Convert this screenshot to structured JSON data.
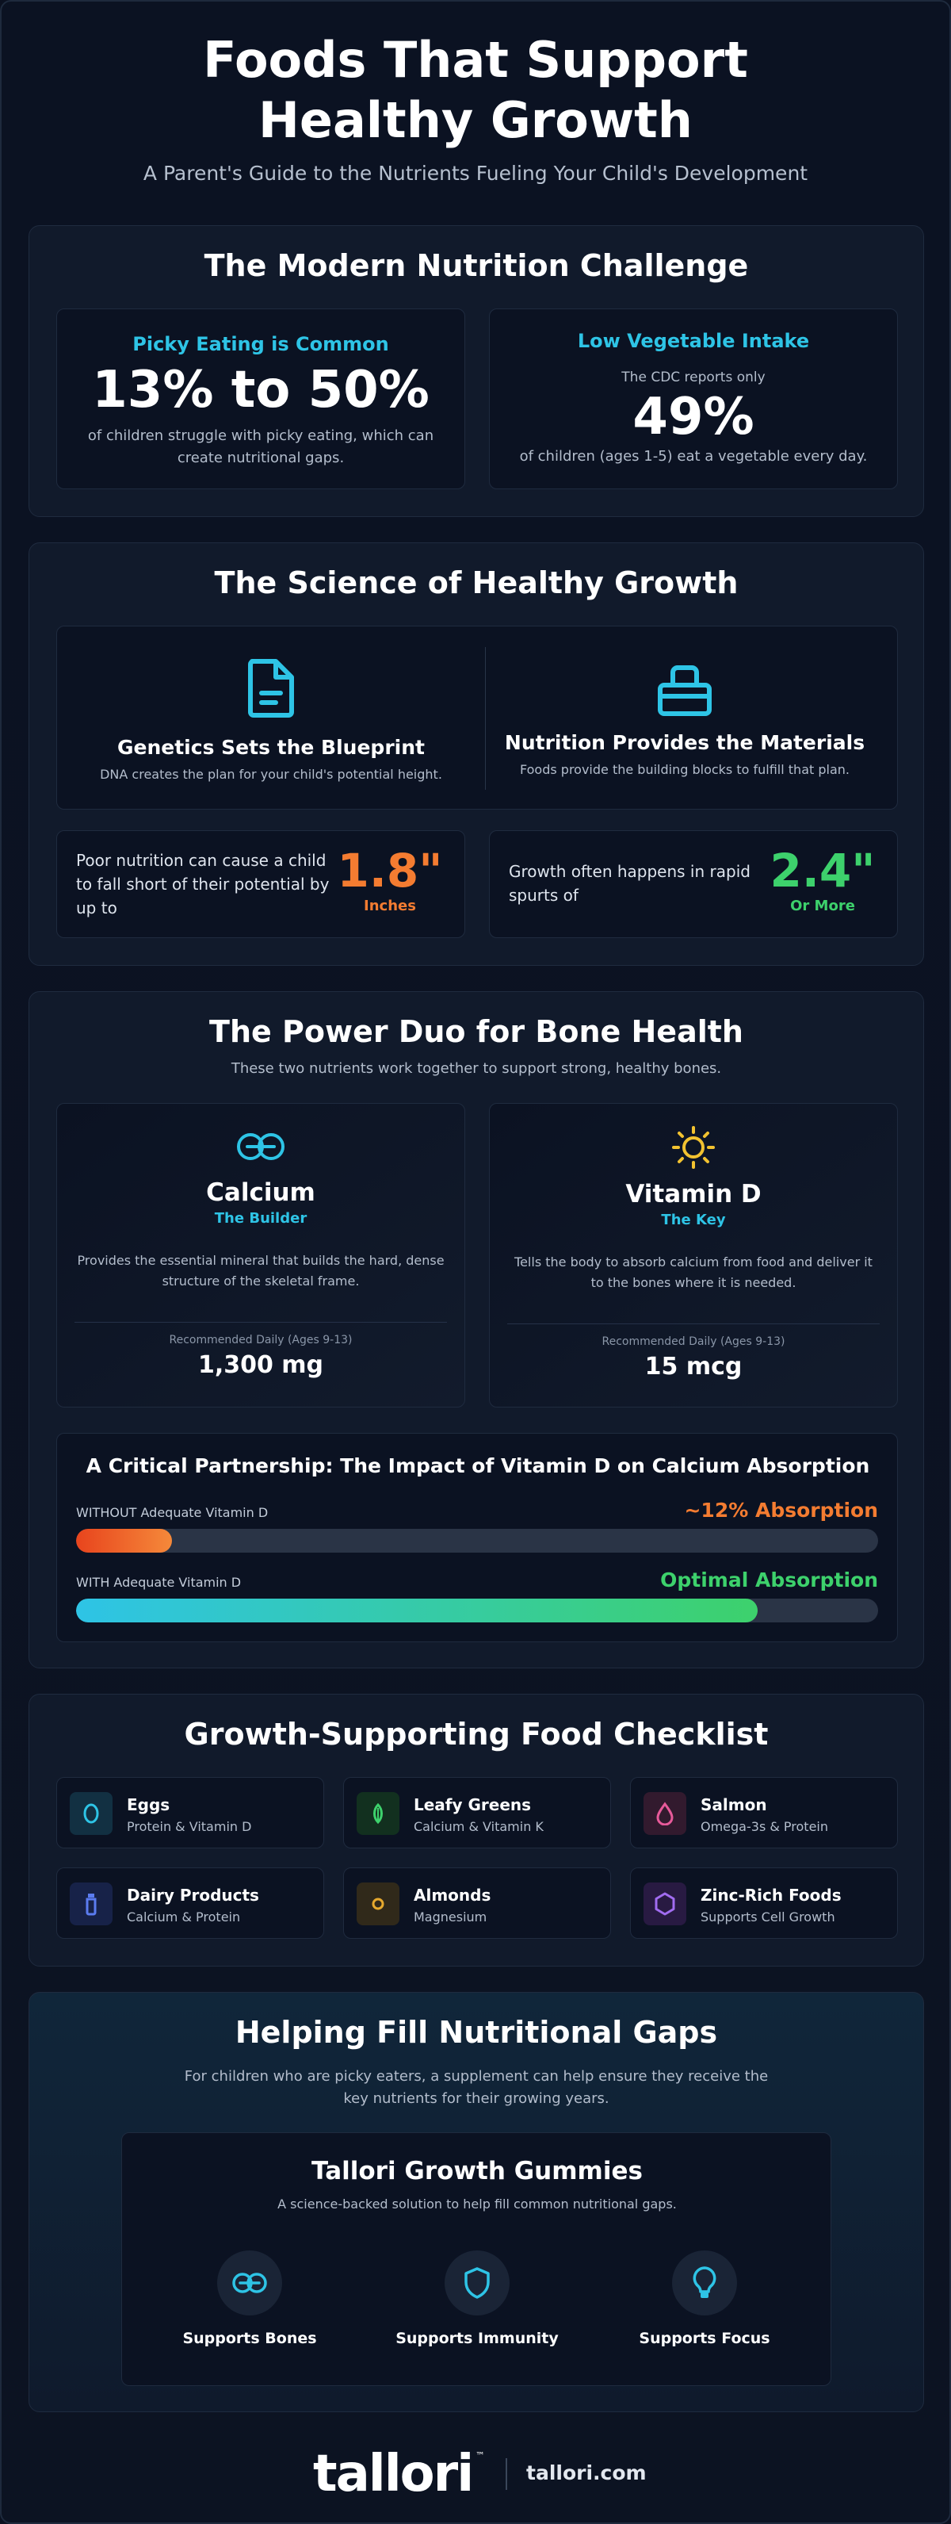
{
  "header": {
    "title": "Foods That Support Healthy Growth",
    "subtitle": "A Parent's Guide to the Nutrients Fueling Your Child's Development"
  },
  "challenge": {
    "title": "The Modern Nutrition Challenge",
    "picky": {
      "heading": "Picky Eating is Common",
      "stat": "13% to 50%",
      "desc": "of children struggle with picky eating, which can create nutritional gaps."
    },
    "veg": {
      "heading": "Low Vegetable Intake",
      "pre": "The CDC reports only",
      "stat": "49%",
      "desc": "of children (ages 1-5) eat a vegetable every day."
    }
  },
  "science": {
    "title": "The Science of Healthy Growth",
    "genetics": {
      "title": "Genetics Sets the Blueprint",
      "desc": "DNA creates the plan for your child's potential height.",
      "icon": "document-icon"
    },
    "nutrition": {
      "title": "Nutrition Provides the Materials",
      "desc": "Foods provide the building blocks to fulfill that plan.",
      "icon": "toolbox-icon"
    },
    "shortfall": {
      "text": "Poor nutrition can cause a child to fall short of their potential by up to",
      "value": "1.8\"",
      "unit": "Inches"
    },
    "spurts": {
      "text": "Growth often happens in rapid spurts of",
      "value": "2.4\"",
      "unit": "Or More"
    }
  },
  "duo": {
    "title": "The Power Duo for Bone Health",
    "subtitle": "These two nutrients work together to support strong, healthy bones.",
    "calcium": {
      "name": "Calcium",
      "role": "The Builder",
      "desc": "Provides the essential mineral that builds the hard, dense structure of the skeletal frame.",
      "rec_label": "Recommended Daily (Ages 9-13)",
      "rec_value": "1,300 mg",
      "icon": "link-icon"
    },
    "vitd": {
      "name": "Vitamin D",
      "role": "The Key",
      "desc": "Tells the body to absorb calcium from food and deliver it to the bones where it is needed.",
      "rec_label": "Recommended Daily (Ages 9-13)",
      "rec_value": "15 mcg",
      "icon": "sun-icon"
    },
    "partnership": {
      "title": "A Critical Partnership: The Impact of Vitamin D on Calcium Absorption",
      "without_label": "WITHOUT Adequate Vitamin D",
      "without_value": "~12% Absorption",
      "without_fill": 0.12,
      "with_label": "WITH Adequate Vitamin D",
      "with_value": "Optimal Absorption",
      "with_fill": 0.85
    }
  },
  "checklist": {
    "title": "Growth-Supporting Food Checklist",
    "items": [
      {
        "name": "Eggs",
        "desc": "Protein & Vitamin D",
        "icon": "egg-icon",
        "color": "#2ec4e6",
        "bg": "#123042"
      },
      {
        "name": "Leafy Greens",
        "desc": "Calcium & Vitamin K",
        "icon": "leaf-icon",
        "color": "#3dd16c",
        "bg": "#12301f"
      },
      {
        "name": "Salmon",
        "desc": "Omega-3s & Protein",
        "icon": "drop-icon",
        "color": "#e75a9a",
        "bg": "#321a2e"
      },
      {
        "name": "Dairy Products",
        "desc": "Calcium & Protein",
        "icon": "bottle-icon",
        "color": "#5b7cf0",
        "bg": "#172248"
      },
      {
        "name": "Almonds",
        "desc": "Magnesium",
        "icon": "nut-icon",
        "color": "#e6a92e",
        "bg": "#30291a"
      },
      {
        "name": "Zinc-Rich Foods",
        "desc": "Supports Cell Growth",
        "icon": "hexagon-icon",
        "color": "#a16cf0",
        "bg": "#281a42"
      }
    ]
  },
  "gaps": {
    "title": "Helping Fill Nutritional Gaps",
    "desc": "For children who are picky eaters, a supplement can help ensure they receive the key nutrients for their growing years.",
    "product": {
      "title": "Tallori Growth Gummies",
      "desc": "A science-backed solution to help fill common nutritional gaps.",
      "benefits": [
        {
          "label": "Supports Bones",
          "icon": "link-icon"
        },
        {
          "label": "Supports Immunity",
          "icon": "shield-icon"
        },
        {
          "label": "Supports Focus",
          "icon": "lightbulb-icon"
        }
      ]
    }
  },
  "footer": {
    "logo": "tallori",
    "tm": "™",
    "url": "tallori.com"
  },
  "colors": {
    "accent": "#2ec4e6",
    "orange": "#f47c31",
    "green": "#3dd16c"
  }
}
